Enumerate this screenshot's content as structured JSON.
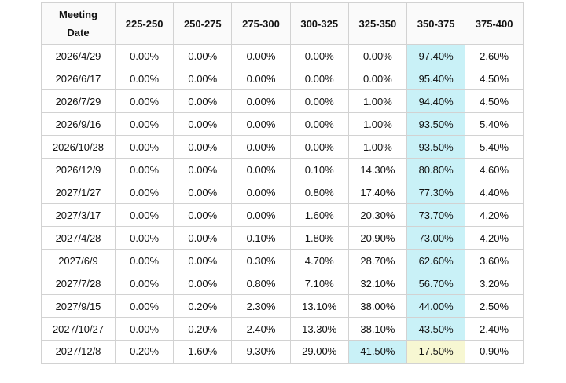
{
  "chart_data": {
    "type": "table",
    "columns": [
      "Meeting Date",
      "225-250",
      "250-275",
      "275-300",
      "300-325",
      "325-350",
      "350-375",
      "375-400"
    ],
    "meeting_date_header_lines": [
      "Meeting",
      "Date"
    ],
    "value_unit": "percent",
    "rows": [
      {
        "date": "2026/4/29",
        "values": [
          0.0,
          0.0,
          0.0,
          0.0,
          0.0,
          97.4,
          2.6
        ],
        "highlight": {
          "5": "cyan"
        }
      },
      {
        "date": "2026/6/17",
        "values": [
          0.0,
          0.0,
          0.0,
          0.0,
          0.0,
          95.4,
          4.5
        ],
        "highlight": {
          "5": "cyan"
        }
      },
      {
        "date": "2026/7/29",
        "values": [
          0.0,
          0.0,
          0.0,
          0.0,
          1.0,
          94.4,
          4.5
        ],
        "highlight": {
          "5": "cyan"
        }
      },
      {
        "date": "2026/9/16",
        "values": [
          0.0,
          0.0,
          0.0,
          0.0,
          1.0,
          93.5,
          5.4
        ],
        "highlight": {
          "5": "cyan"
        }
      },
      {
        "date": "2026/10/28",
        "values": [
          0.0,
          0.0,
          0.0,
          0.0,
          1.0,
          93.5,
          5.4
        ],
        "highlight": {
          "5": "cyan"
        }
      },
      {
        "date": "2026/12/9",
        "values": [
          0.0,
          0.0,
          0.0,
          0.1,
          14.3,
          80.8,
          4.6
        ],
        "highlight": {
          "5": "cyan"
        }
      },
      {
        "date": "2027/1/27",
        "values": [
          0.0,
          0.0,
          0.0,
          0.8,
          17.4,
          77.3,
          4.4
        ],
        "highlight": {
          "5": "cyan"
        }
      },
      {
        "date": "2027/3/17",
        "values": [
          0.0,
          0.0,
          0.0,
          1.6,
          20.3,
          73.7,
          4.2
        ],
        "highlight": {
          "5": "cyan"
        }
      },
      {
        "date": "2027/4/28",
        "values": [
          0.0,
          0.0,
          0.1,
          1.8,
          20.9,
          73.0,
          4.2
        ],
        "highlight": {
          "5": "cyan"
        }
      },
      {
        "date": "2027/6/9",
        "values": [
          0.0,
          0.0,
          0.3,
          4.7,
          28.7,
          62.6,
          3.6
        ],
        "highlight": {
          "5": "cyan"
        }
      },
      {
        "date": "2027/7/28",
        "values": [
          0.0,
          0.0,
          0.8,
          7.1,
          32.1,
          56.7,
          3.2
        ],
        "highlight": {
          "5": "cyan"
        }
      },
      {
        "date": "2027/9/15",
        "values": [
          0.0,
          0.2,
          2.3,
          13.1,
          38.0,
          44.0,
          2.5
        ],
        "highlight": {
          "5": "cyan"
        }
      },
      {
        "date": "2027/10/27",
        "values": [
          0.0,
          0.2,
          2.4,
          13.3,
          38.1,
          43.5,
          2.4
        ],
        "highlight": {
          "5": "cyan"
        }
      },
      {
        "date": "2027/12/8",
        "values": [
          0.2,
          1.6,
          9.3,
          29.0,
          41.5,
          17.5,
          0.9
        ],
        "highlight": {
          "4": "cyan",
          "5": "yellow"
        }
      }
    ],
    "colors": {
      "highlight_cyan": "#c9f1f7",
      "highlight_yellow": "#f7f7d2",
      "header_bg": "#fafafa",
      "border": "#d2d2d2",
      "text": "#111111"
    }
  }
}
